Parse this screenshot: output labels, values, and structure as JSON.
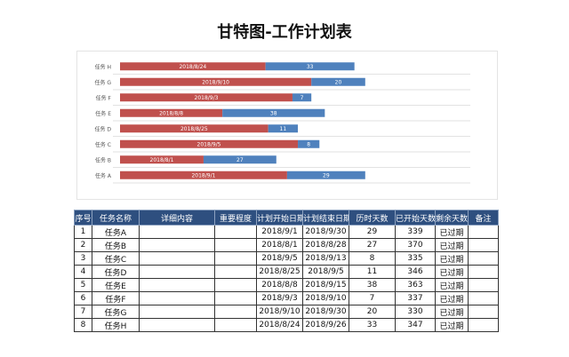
{
  "page": {
    "title": "甘特图-工作计划表"
  },
  "chart_data": {
    "type": "bar",
    "orientation": "horizontal-stacked",
    "categories": [
      "任务H",
      "任务G",
      "任务F",
      "任务E",
      "任务D",
      "任务C",
      "任务B",
      "任务A"
    ],
    "category_tick_labels": [
      "任务 H",
      "任务 G",
      "任务 F",
      "任务 E",
      "任务 D",
      "任务 C",
      "任务 B",
      "任务 A"
    ],
    "series": [
      {
        "role": "start",
        "color": "#c0504d",
        "values": [
          "2018-08-24",
          "2018-09-10",
          "2018-09-03",
          "2018-08-08",
          "2018-08-25",
          "2018-09-05",
          "2018-08-01",
          "2018-09-01"
        ],
        "labels": [
          "2018/8/24",
          "2018/9/10",
          "2018/9/3",
          "2018/8/8",
          "2018/8/25",
          "2018/9/5",
          "2018/8/1",
          "2018/9/1"
        ]
      },
      {
        "role": "duration",
        "color": "#4f81bd",
        "values": [
          33,
          20,
          7,
          38,
          11,
          8,
          27,
          29
        ],
        "labels": [
          "33",
          "20",
          "7",
          "38",
          "11",
          "8",
          "27",
          "29"
        ]
      }
    ],
    "xlim": [
      "2018-07-01",
      "2018-11-08"
    ],
    "grid": true,
    "legend": "none",
    "xlabel": "",
    "ylabel": ""
  },
  "table": {
    "headers": [
      "序号",
      "任务名称",
      "详细内容",
      "重要程度",
      "计划开始日期",
      "计划结束日期",
      "历时天数",
      "已开始天数",
      "剩余天数",
      "备注"
    ],
    "rows": [
      [
        "1",
        "任务A",
        "",
        "",
        "2018/9/1",
        "2018/9/30",
        "29",
        "339",
        "已过期",
        ""
      ],
      [
        "2",
        "任务B",
        "",
        "",
        "2018/8/1",
        "2018/8/28",
        "27",
        "370",
        "已过期",
        ""
      ],
      [
        "3",
        "任务C",
        "",
        "",
        "2018/9/5",
        "2018/9/13",
        "8",
        "335",
        "已过期",
        ""
      ],
      [
        "4",
        "任务D",
        "",
        "",
        "2018/8/25",
        "2018/9/5",
        "11",
        "346",
        "已过期",
        ""
      ],
      [
        "5",
        "任务E",
        "",
        "",
        "2018/8/8",
        "2018/9/15",
        "38",
        "363",
        "已过期",
        ""
      ],
      [
        "6",
        "任务F",
        "",
        "",
        "2018/9/3",
        "2018/9/10",
        "7",
        "337",
        "已过期",
        ""
      ],
      [
        "7",
        "任务G",
        "",
        "",
        "2018/9/10",
        "2018/9/30",
        "20",
        "330",
        "已过期",
        ""
      ],
      [
        "8",
        "任务H",
        "",
        "",
        "2018/8/24",
        "2018/9/26",
        "33",
        "347",
        "已过期",
        ""
      ]
    ]
  }
}
